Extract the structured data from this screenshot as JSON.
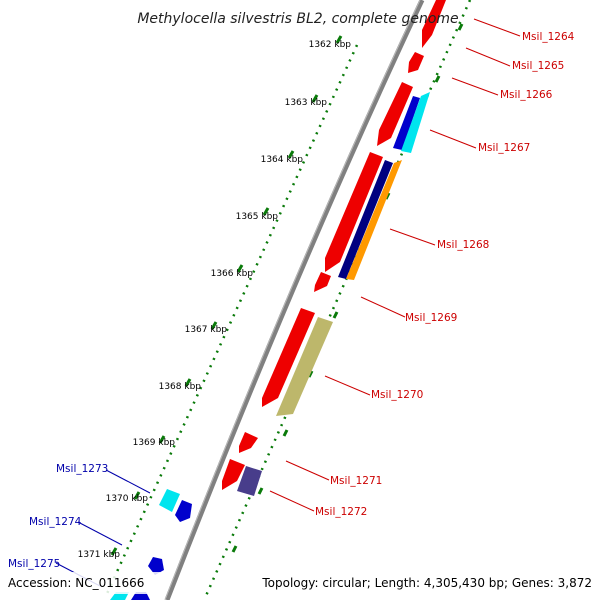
{
  "title": "Methylocella silvestris BL2, complete genome",
  "accession": "Accession: NC_011666",
  "summary": "Topology: circular; Length: 4,305,430 bp; Genes: 3,872",
  "colors": {
    "backbone": "#808080",
    "gc_dots": "#0a7a0a",
    "forward_label": "#cc0000",
    "reverse_label": "#0000aa"
  },
  "ticks": [
    "1362 kbp",
    "1363 kbp",
    "1364 kbp",
    "1365 kbp",
    "1366 kbp",
    "1367 kbp",
    "1368 kbp",
    "1369 kbp",
    "1370 kbp",
    "1371 kbp"
  ],
  "forward_genes": [
    "Msil_1264",
    "Msil_1265",
    "Msil_1266",
    "Msil_1267",
    "Msil_1268",
    "Msil_1269",
    "Msil_1270",
    "Msil_1271",
    "Msil_1272"
  ],
  "reverse_genes": [
    "Msil_1273",
    "Msil_1274",
    "Msil_1275"
  ]
}
